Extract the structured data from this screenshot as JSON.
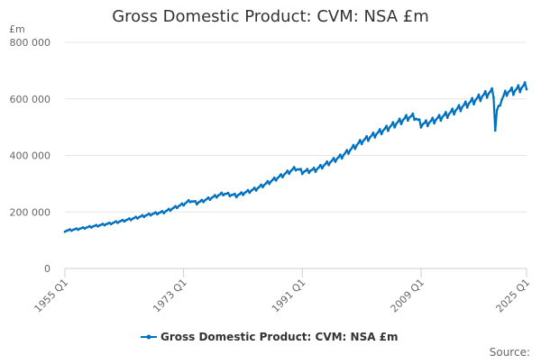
{
  "chart_data": {
    "type": "line",
    "title": "Gross Domestic Product: CVM: NSA £m",
    "ylabel": "£m",
    "xlabel": "",
    "ylim": [
      0,
      800000
    ],
    "yticks": [
      0,
      200000,
      400000,
      600000,
      800000
    ],
    "ytick_labels": [
      "0",
      "200 000",
      "400 000",
      "600 000",
      "800 000"
    ],
    "x_start": "1955 Q1",
    "x_end": "2025 Q1",
    "xticks": [
      {
        "label": "1955 Q1",
        "year": 1955
      },
      {
        "label": "1973 Q1",
        "year": 1973
      },
      {
        "label": "1991 Q1",
        "year": 1991
      },
      {
        "label": "2009 Q1",
        "year": 2009
      },
      {
        "label": "2025 Q1",
        "year": 2025
      }
    ],
    "grid": true,
    "legend": "bottom",
    "source_label": "Source:",
    "series": [
      {
        "name": "Gross Domestic Product: CVM: NSA £m",
        "color": "#0070c0",
        "anchors": [
          [
            1955,
            133000
          ],
          [
            1957,
            140000
          ],
          [
            1960,
            152000
          ],
          [
            1962,
            160000
          ],
          [
            1965,
            175000
          ],
          [
            1968,
            192000
          ],
          [
            1970,
            200000
          ],
          [
            1973,
            228000
          ],
          [
            1974,
            240000
          ],
          [
            1975,
            232000
          ],
          [
            1979,
            265000
          ],
          [
            1981,
            258000
          ],
          [
            1984,
            282000
          ],
          [
            1988,
            330000
          ],
          [
            1990,
            355000
          ],
          [
            1991,
            342000
          ],
          [
            1993,
            350000
          ],
          [
            1997,
            398000
          ],
          [
            2000,
            450000
          ],
          [
            2004,
            498000
          ],
          [
            2007,
            535000
          ],
          [
            2008,
            538000
          ],
          [
            2009,
            510000
          ],
          [
            2010,
            515000
          ],
          [
            2013,
            545000
          ],
          [
            2016,
            582000
          ],
          [
            2019,
            618000
          ],
          [
            2019.75,
            625000
          ],
          [
            2020,
            605000
          ],
          [
            2020.25,
            488000
          ],
          [
            2020.5,
            560000
          ],
          [
            2021,
            590000
          ],
          [
            2022,
            625000
          ],
          [
            2023,
            628000
          ],
          [
            2024,
            638000
          ],
          [
            2025,
            648000
          ]
        ],
        "seasonal_amplitude": 0.022
      }
    ]
  }
}
